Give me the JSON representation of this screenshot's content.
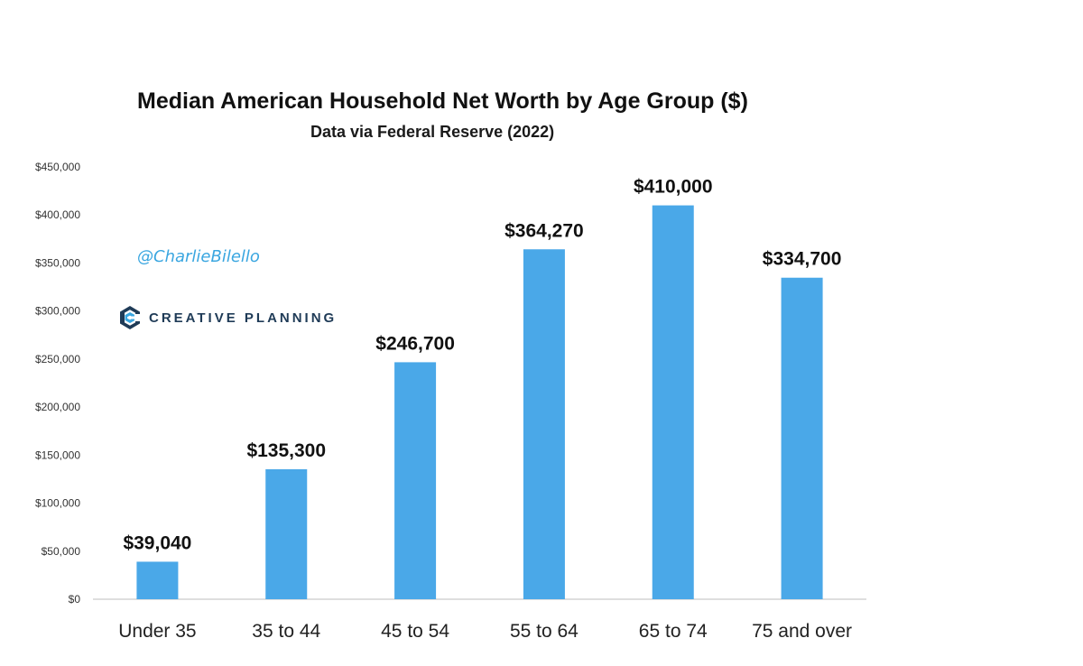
{
  "chart_data": {
    "type": "bar",
    "title": "Median American Household Net Worth by Age Group ($)",
    "subtitle": "Data via Federal Reserve (2022)",
    "categories": [
      "Under 35",
      "35 to 44",
      "45 to 54",
      "55 to 64",
      "65 to 74",
      "75 and over"
    ],
    "values": [
      39040,
      135300,
      246700,
      364270,
      410000,
      334700
    ],
    "data_labels": [
      "$39,040",
      "$135,300",
      "$246,700",
      "$364,270",
      "$410,000",
      "$334,700"
    ],
    "y_ticks": [
      0,
      50000,
      100000,
      150000,
      200000,
      250000,
      300000,
      350000,
      400000,
      450000
    ],
    "y_tick_labels": [
      "$0",
      "$50,000",
      "$100,000",
      "$150,000",
      "$200,000",
      "$250,000",
      "$300,000",
      "$350,000",
      "$400,000",
      "$450,000"
    ],
    "ylim": [
      0,
      450000
    ],
    "xlabel": "",
    "ylabel": "",
    "grid": false,
    "legend": "none",
    "bar_color": "#4aa8e8"
  },
  "watermark": {
    "handle": "@CharlieBilello",
    "brand": "CREATIVE PLANNING",
    "brand_icon": "creative-planning-logo-icon"
  }
}
